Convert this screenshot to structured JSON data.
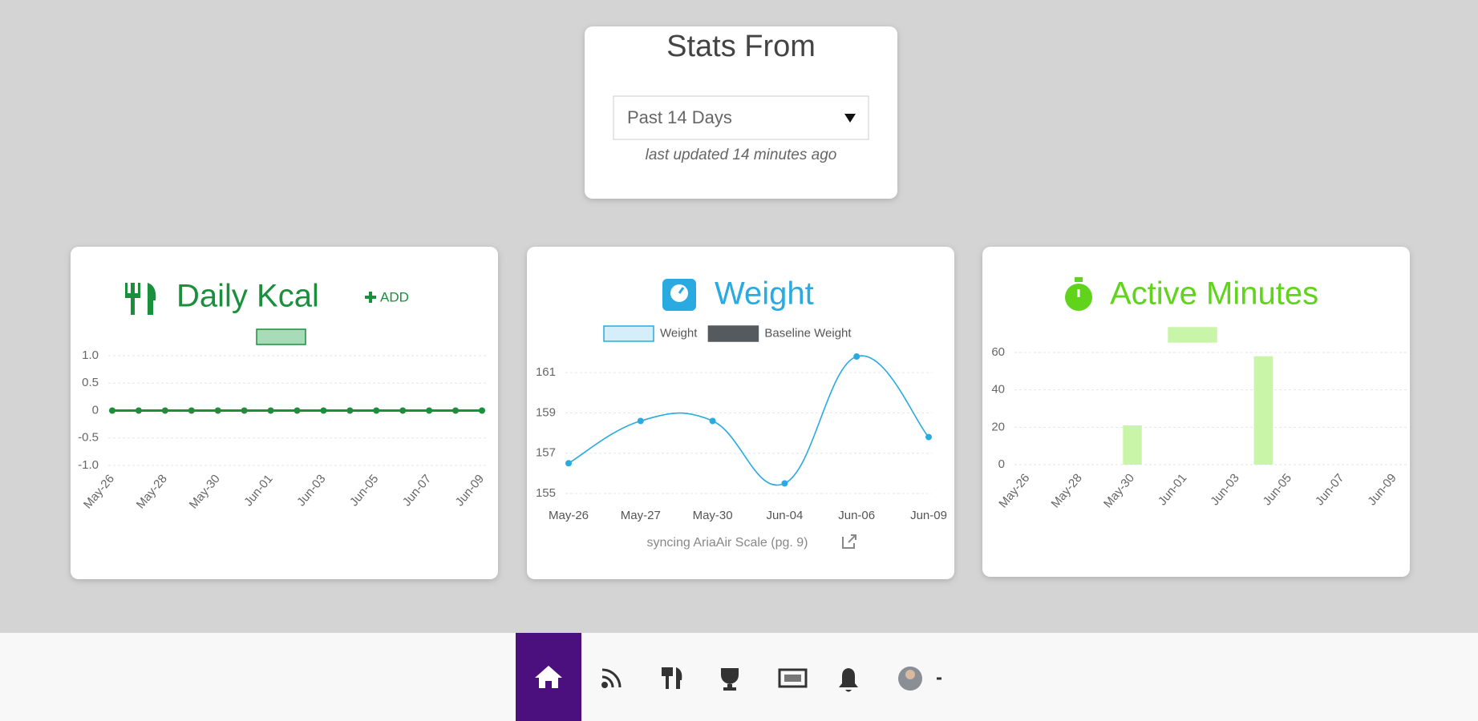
{
  "stats_panel": {
    "title": "Stats From",
    "range": "Past 14 Days",
    "updated": "last updated 14 minutes ago"
  },
  "chart_data": [
    {
      "type": "line",
      "title": "Daily Kcal",
      "add_button": "ADD",
      "categories": [
        "May-26",
        null,
        "May-28",
        null,
        "May-30",
        null,
        "Jun-01",
        null,
        "Jun-03",
        null,
        "Jun-05",
        null,
        "Jun-07",
        null,
        "Jun-09"
      ],
      "series": [
        {
          "color": "#1a8f3c",
          "values": [
            0,
            0,
            0,
            0,
            0,
            0,
            0,
            0,
            0,
            0,
            0,
            0,
            0,
            0,
            0
          ]
        }
      ],
      "ylim": [
        -1,
        1
      ],
      "yticks": [
        {
          "value": 1,
          "label": "1.0"
        },
        0.5,
        0,
        -0.5,
        {
          "value": -1,
          "label": "-1.0"
        }
      ],
      "grid": true
    },
    {
      "type": "line",
      "title": "Weight",
      "smooth": true,
      "categories": [
        "May-26",
        "May-27",
        "May-30",
        "Jun-04",
        "Jun-06",
        "Jun-09"
      ],
      "series": [
        {
          "name": "Weight",
          "color": "#29aae1",
          "values": [
            156.5,
            158.6,
            158.6,
            155.5,
            161.8,
            157.8
          ]
        },
        {
          "name": "Baseline Weight",
          "color": "#555a5e",
          "values": [
            null,
            null,
            null,
            null,
            null,
            null
          ]
        }
      ],
      "ylim": [
        155,
        162
      ],
      "yticks": [
        155,
        157,
        159,
        161
      ],
      "grid": true,
      "note": "syncing AriaAir Scale (pg. 9)"
    },
    {
      "type": "bar",
      "title": "Active Minutes",
      "categories": [
        "May-26",
        null,
        "May-28",
        null,
        "May-30",
        null,
        "Jun-01",
        null,
        "Jun-03",
        null,
        "Jun-05",
        null,
        "Jun-07",
        null,
        "Jun-09"
      ],
      "series": [
        {
          "color": "#c9f5a8",
          "values": [
            0,
            0,
            0,
            0,
            21,
            0,
            0,
            0,
            0,
            58,
            0,
            0,
            0,
            0,
            0
          ]
        }
      ],
      "ylim": [
        0,
        60
      ],
      "yticks": [
        0,
        20,
        40,
        60
      ],
      "grid": true
    }
  ]
}
